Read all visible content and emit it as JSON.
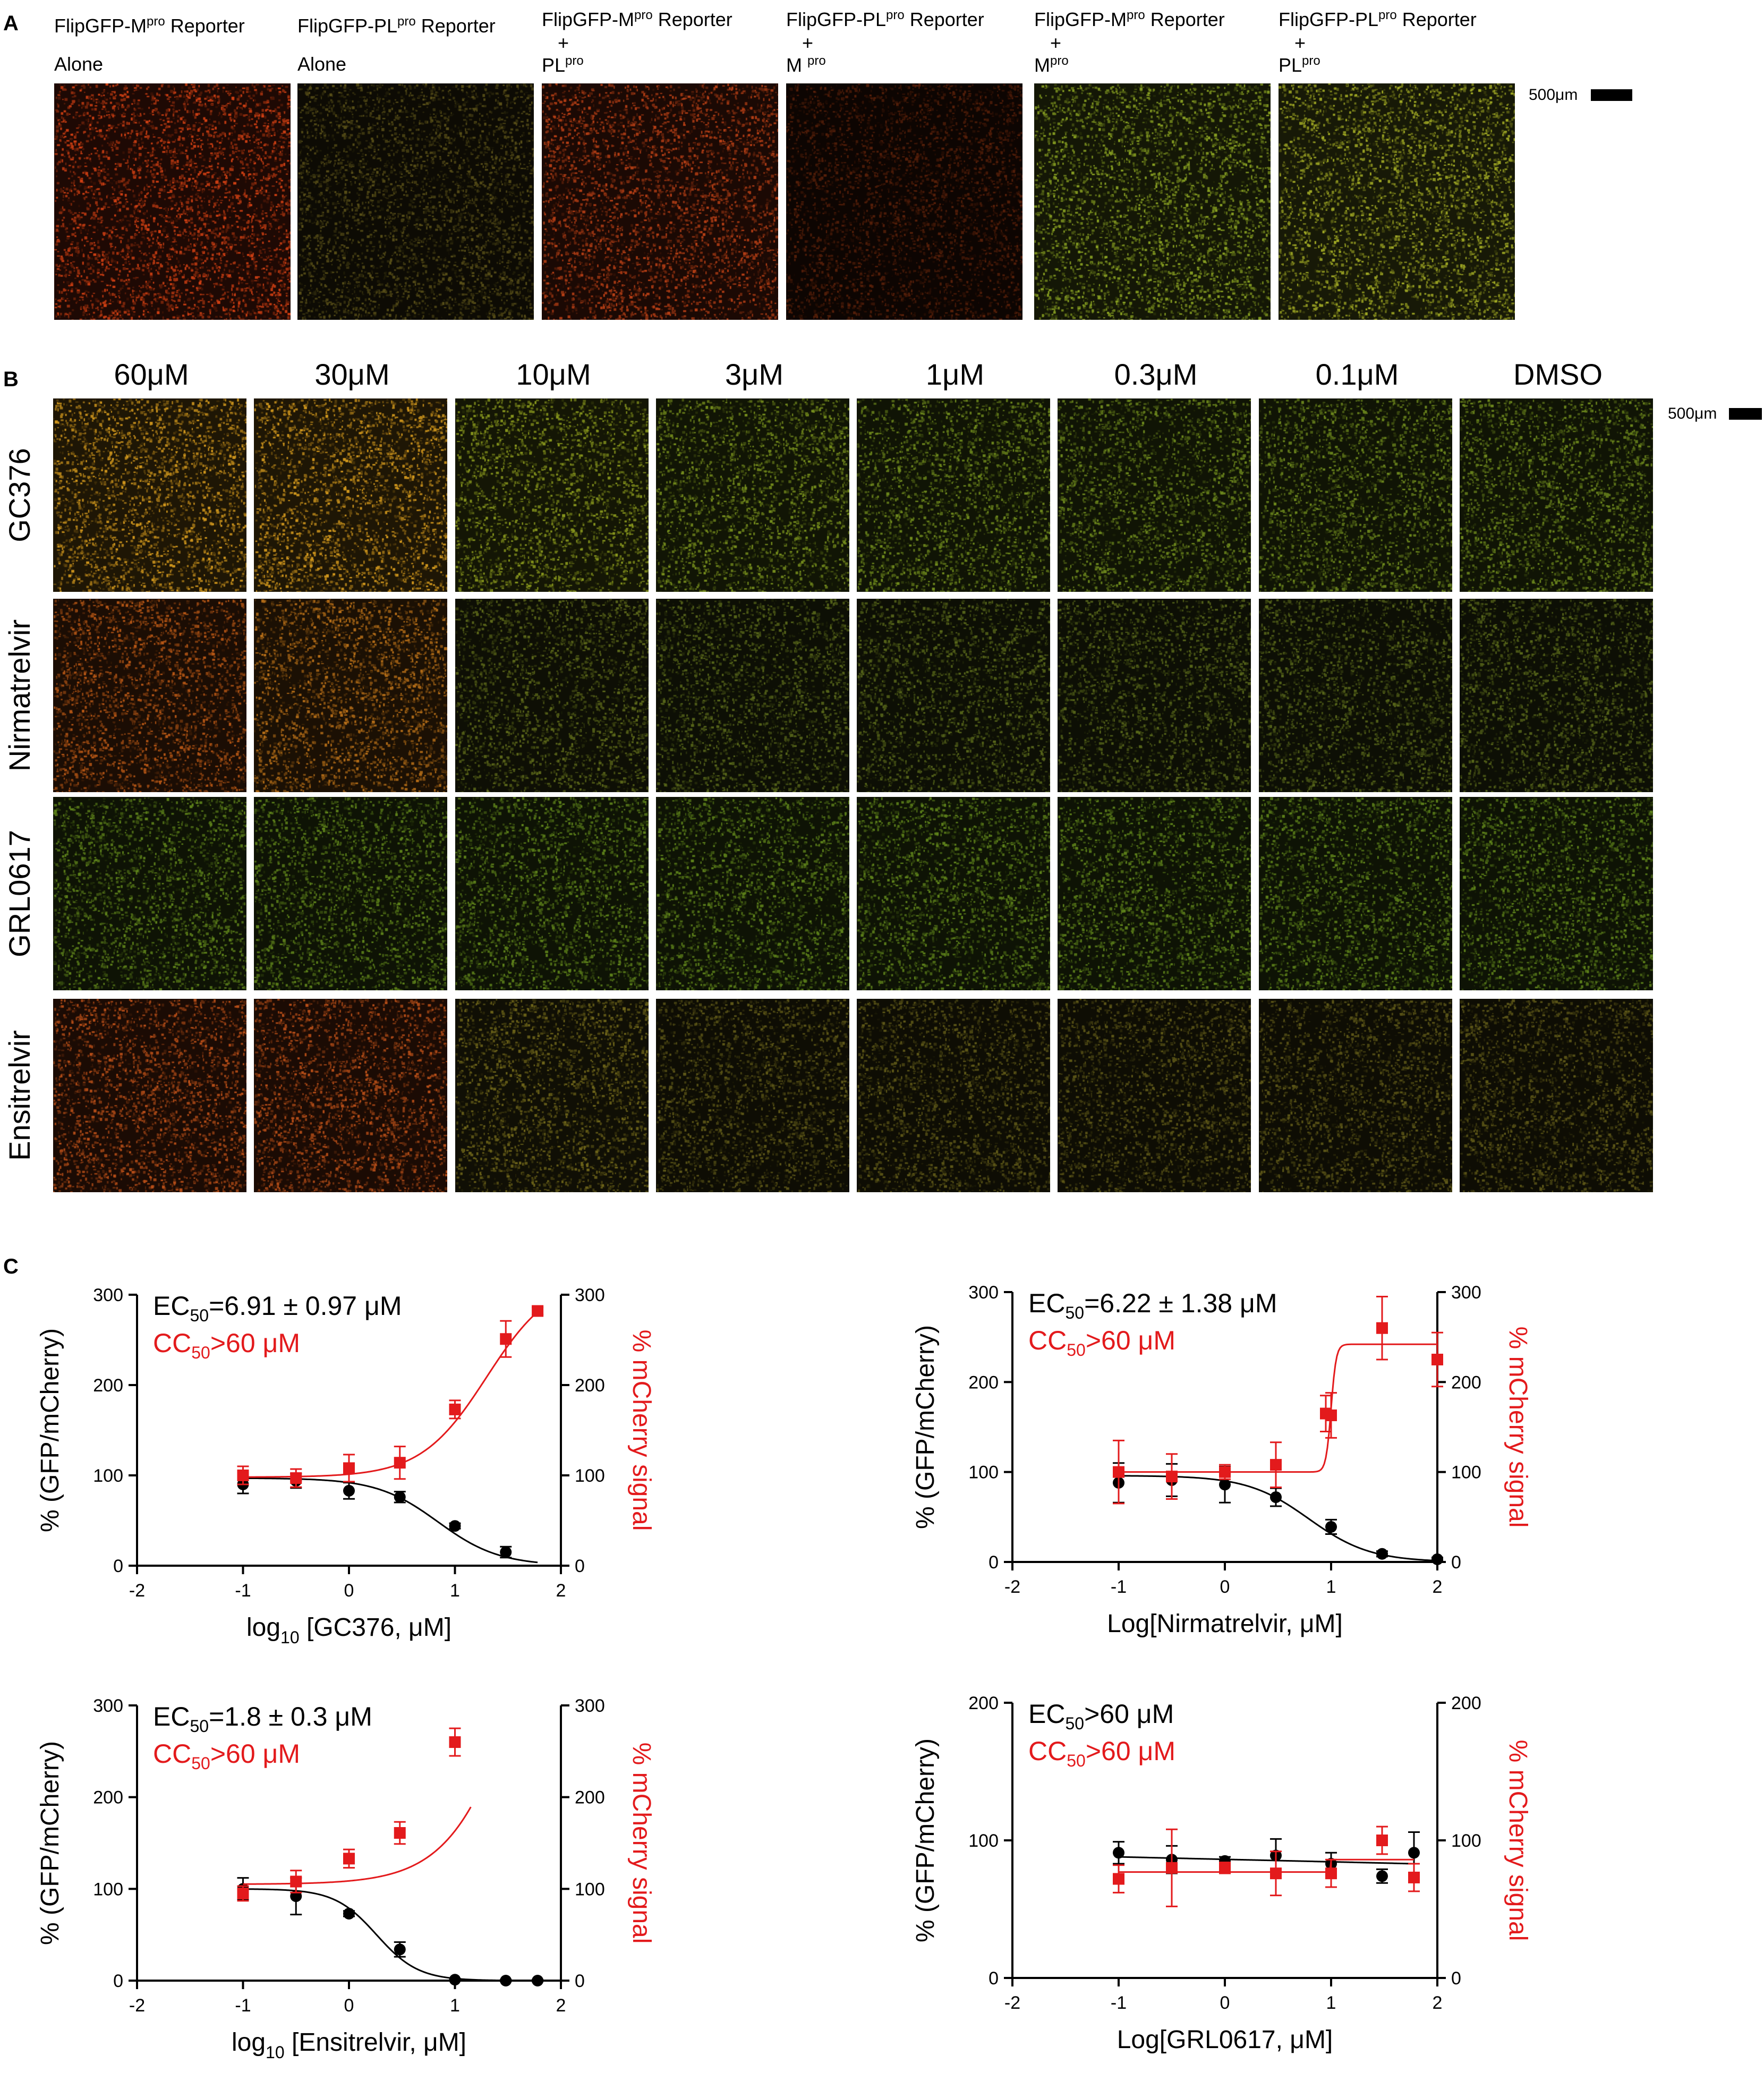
{
  "panels": {
    "a": "A",
    "b": "B",
    "c": "C"
  },
  "panel_a": {
    "labels": [
      {
        "line1": "FlipGFP-M",
        "sup1": "pro",
        "after1": " Reporter",
        "line2": "Alone",
        "line3": ""
      },
      {
        "line1": "FlipGFP-PL",
        "sup1": "pro",
        "after1": " Reporter",
        "line2": "Alone",
        "line3": ""
      },
      {
        "line1": "FlipGFP-M",
        "sup1": "pro",
        "after1": " Reporter",
        "line2": "+",
        "line3": "PL",
        "sup3": "pro"
      },
      {
        "line1": "FlipGFP-PL",
        "sup1": "pro",
        "after1": " Reporter",
        "line2": "+",
        "line3": "M ",
        "sup3": "pro"
      },
      {
        "line1": "FlipGFP-M",
        "sup1": "pro",
        "after1": " Reporter",
        "line2": "+",
        "line3": "M",
        "sup3": "pro"
      },
      {
        "line1": "FlipGFP-PL",
        "sup1": "pro",
        "after1": " Reporter",
        "line2": "+",
        "line3": "PL",
        "sup3": "pro"
      }
    ],
    "image_colors": [
      "#8a2a10",
      "#3a3414",
      "#7a2a12",
      "#3a1508",
      "#5a6a1c",
      "#6a701e"
    ],
    "scale_label": "500μm"
  },
  "panel_b": {
    "columns": [
      "60μM",
      "30μM",
      "10μM",
      "3μM",
      "1μM",
      "0.3μM",
      "0.1μM",
      "DMSO"
    ],
    "rows": [
      "GC376",
      "Nirmatrelvir",
      "GRL0617",
      "Ensitrelvir"
    ],
    "scale_label": "500μm",
    "image_colors": [
      [
        "#8a6418",
        "#8a6418",
        "#5a6418",
        "#4e5e18",
        "#4a5c18",
        "#485a18",
        "#485a18",
        "#485a18"
      ],
      [
        "#7a3a12",
        "#7a4a14",
        "#3e4616",
        "#3a4416",
        "#3a4416",
        "#3a4416",
        "#3a4416",
        "#3a4416"
      ],
      [
        "#3e5616",
        "#3e5616",
        "#3e5616",
        "#3e5616",
        "#3e5616",
        "#3e5616",
        "#3e5616",
        "#3e5616"
      ],
      [
        "#7a3414",
        "#7a3414",
        "#4a4416",
        "#3e3a14",
        "#3e3a14",
        "#3e3a14",
        "#3e3a14",
        "#3e3a14"
      ]
    ]
  },
  "chart_data": [
    {
      "type": "scatter",
      "xlabel": "log10 [GC376, μM]",
      "xlabel_main": "log",
      "xlabel_sub": "10",
      "xlabel_rest": " [GC376, μM]",
      "ylabel": "% (GFP/mCherry)",
      "y2label": "% mCherry signal",
      "ec50_text": "EC",
      "ec50_sub": "50",
      "ec50_rest": "=6.91 ± 0.97 μM",
      "cc50_text": "CC",
      "cc50_sub": "50",
      "cc50_rest": ">60 μM",
      "xlim": [
        -2,
        2
      ],
      "ylim": [
        0,
        300
      ],
      "y2lim": [
        0,
        300
      ],
      "xticks": [
        "-2",
        "-1",
        "0",
        "1",
        "2"
      ],
      "yticks": [
        "0",
        "100",
        "200",
        "300"
      ],
      "y2ticks": [
        "0",
        "100",
        "200",
        "300"
      ],
      "series": [
        {
          "name": "GFP/mCherry",
          "color": "#000000",
          "marker": "circle",
          "x": [
            -1,
            -0.5,
            0,
            0.48,
            1,
            1.48
          ],
          "y": [
            90,
            94,
            83,
            76,
            44,
            15
          ],
          "err": [
            10,
            8,
            9,
            6,
            3,
            6
          ],
          "fit": {
            "kind": "sigmoid_down",
            "top": 97,
            "bottom": 0,
            "logec50": 0.84,
            "hill": 1.5,
            "xmin": -1,
            "xmax": 1.78
          }
        },
        {
          "name": "mCherry",
          "color": "#e31a1c",
          "marker": "square",
          "x": [
            -1,
            -0.5,
            0,
            0.48,
            1,
            1.48,
            1.78
          ],
          "y": [
            100,
            97,
            108,
            114,
            173,
            251,
            282
          ],
          "err": [
            10,
            10,
            15,
            18,
            10,
            20,
            4
          ],
          "fit": {
            "kind": "sigmoid_up",
            "bottom": 98,
            "top": 320,
            "logec50": 1.3,
            "hill": 1.4,
            "xmin": -1,
            "xmax": 1.78
          }
        }
      ]
    },
    {
      "type": "scatter",
      "xlabel": "Log[Nirmatrelvir, μM]",
      "xlabel_main": "Log[Nirmatrelvir, μM]",
      "xlabel_sub": "",
      "xlabel_rest": "",
      "ylabel": "% (GFP/mCherry)",
      "y2label": "% mCherry signal",
      "ec50_text": "EC",
      "ec50_sub": "50",
      "ec50_rest": "=6.22 ± 1.38 μM",
      "cc50_text": "CC",
      "cc50_sub": "50",
      "cc50_rest": ">60 μM",
      "xlim": [
        -2,
        2
      ],
      "ylim": [
        0,
        300
      ],
      "y2lim": [
        0,
        300
      ],
      "xticks": [
        "-2",
        "-1",
        "0",
        "1",
        "2"
      ],
      "yticks": [
        "0",
        "100",
        "200",
        "300"
      ],
      "y2ticks": [
        "0",
        "100",
        "200",
        "300"
      ],
      "series": [
        {
          "name": "GFP/mCherry",
          "color": "#000000",
          "marker": "circle",
          "x": [
            -1,
            -0.5,
            0,
            0.48,
            1,
            1.48,
            2
          ],
          "y": [
            88,
            91,
            86,
            72,
            39,
            9,
            3
          ],
          "err": [
            22,
            18,
            20,
            10,
            8,
            3,
            2
          ],
          "fit": {
            "kind": "sigmoid_down",
            "top": 96,
            "bottom": 0,
            "logec50": 0.79,
            "hill": 1.5,
            "xmin": -1,
            "xmax": 2
          }
        },
        {
          "name": "mCherry",
          "color": "#e31a1c",
          "marker": "square",
          "x": [
            -1,
            -0.5,
            0,
            0.48,
            0.95,
            1,
            1.48,
            2
          ],
          "y": [
            100,
            95,
            100,
            108,
            165,
            163,
            260,
            225
          ],
          "err": [
            35,
            25,
            8,
            25,
            20,
            25,
            35,
            30
          ],
          "fit": {
            "kind": "sigmoid_up",
            "bottom": 100,
            "top": 242,
            "logec50": 1.0,
            "hill": 18,
            "xmin": -1,
            "xmax": 2
          }
        }
      ]
    },
    {
      "type": "scatter",
      "xlabel": "log10 [Ensitrelvir, μM]",
      "xlabel_main": "log",
      "xlabel_sub": "10",
      "xlabel_rest": " [Ensitrelvir, μM]",
      "ylabel": "% (GFP/mCherry)",
      "y2label": "% mCherry signal",
      "ec50_text": "EC",
      "ec50_sub": "50",
      "ec50_rest": "=1.8 ± 0.3 μM",
      "cc50_text": "CC",
      "cc50_sub": "50",
      "cc50_rest": ">60 μM",
      "xlim": [
        -2,
        2
      ],
      "ylim": [
        0,
        300
      ],
      "y2lim": [
        0,
        300
      ],
      "xticks": [
        "-2",
        "-1",
        "0",
        "1",
        "2"
      ],
      "yticks": [
        "0",
        "100",
        "200",
        "300"
      ],
      "y2ticks": [
        "0",
        "100",
        "200",
        "300"
      ],
      "series": [
        {
          "name": "GFP/mCherry",
          "color": "#000000",
          "marker": "circle",
          "x": [
            -1,
            -0.5,
            0,
            0.48,
            1,
            1.48,
            1.78
          ],
          "y": [
            100,
            92,
            73,
            34,
            1,
            0,
            0
          ],
          "err": [
            12,
            20,
            3,
            8,
            1,
            1,
            1
          ],
          "fit": {
            "kind": "sigmoid_down",
            "top": 100,
            "bottom": 0,
            "logec50": 0.26,
            "hill": 2.2,
            "xmin": -1,
            "xmax": 1.78
          }
        },
        {
          "name": "mCherry",
          "color": "#e31a1c",
          "marker": "square",
          "x": [
            -1,
            -0.5,
            0,
            0.48,
            1
          ],
          "y": [
            95,
            108,
            133,
            161,
            260
          ],
          "err": [
            8,
            12,
            10,
            12,
            15
          ],
          "fit": {
            "kind": "sigmoid_up",
            "bottom": 105,
            "top": 600,
            "logec50": 1.7,
            "hill": 1.25,
            "xmin": -1,
            "xmax": 1.15
          }
        }
      ]
    },
    {
      "type": "scatter",
      "xlabel": "Log[GRL0617, μM]",
      "xlabel_main": "Log[GRL0617, μM]",
      "xlabel_sub": "",
      "xlabel_rest": "",
      "ylabel": "% (GFP/mCherry)",
      "y2label": "% mCherry signal",
      "ec50_text": "EC",
      "ec50_sub": "50",
      "ec50_rest": ">60 μM",
      "cc50_text": "CC",
      "cc50_sub": "50",
      "cc50_rest": ">60 μM",
      "xlim": [
        -2,
        2
      ],
      "ylim": [
        0,
        200
      ],
      "y2lim": [
        0,
        200
      ],
      "xticks": [
        "-2",
        "-1",
        "0",
        "1",
        "2"
      ],
      "yticks": [
        "0",
        "100",
        "200"
      ],
      "y2ticks": [
        "0",
        "100",
        "200"
      ],
      "series": [
        {
          "name": "GFP/mCherry",
          "color": "#000000",
          "marker": "circle",
          "x": [
            -1,
            -0.5,
            0,
            0.48,
            1,
            1.48,
            1.78
          ],
          "y": [
            91,
            86,
            85,
            89,
            83,
            74,
            91
          ],
          "err": [
            8,
            10,
            3,
            12,
            8,
            5,
            15
          ],
          "fit": {
            "kind": "line",
            "y0": 88,
            "y1": 83,
            "xmin": -1,
            "xmax": 1.78
          }
        },
        {
          "name": "mCherry",
          "color": "#e31a1c",
          "marker": "square",
          "x": [
            -1,
            -0.5,
            0,
            0.48,
            1,
            1.48,
            1.78
          ],
          "y": [
            72,
            80,
            80,
            76,
            76,
            100,
            73
          ],
          "err": [
            10,
            28,
            4,
            16,
            10,
            10,
            10
          ],
          "fit": {
            "kind": "line_step",
            "y0": 77,
            "y1": 86,
            "step": 1.0,
            "xmin": -1,
            "xmax": 1.78
          }
        }
      ]
    }
  ]
}
